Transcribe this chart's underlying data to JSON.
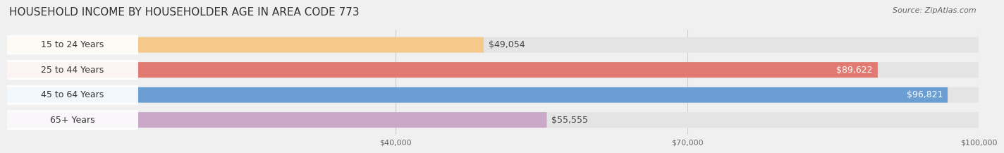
{
  "title": "HOUSEHOLD INCOME BY HOUSEHOLDER AGE IN AREA CODE 773",
  "source": "Source: ZipAtlas.com",
  "categories": [
    "15 to 24 Years",
    "25 to 44 Years",
    "45 to 64 Years",
    "65+ Years"
  ],
  "values": [
    49054,
    89622,
    96821,
    55555
  ],
  "bar_colors": [
    "#f5c98a",
    "#e07a72",
    "#6b9fd4",
    "#c9a8c8"
  ],
  "label_colors": [
    "#444444",
    "#ffffff",
    "#ffffff",
    "#444444"
  ],
  "xlim_min": 0,
  "xlim_max": 100000,
  "xticks": [
    40000,
    70000,
    100000
  ],
  "xtick_labels": [
    "$40,000",
    "$70,000",
    "$100,000"
  ],
  "bar_height": 0.62,
  "background_color": "#f0f0f0",
  "bar_bg_color": "#e4e4e4",
  "title_fontsize": 11,
  "source_fontsize": 8,
  "label_fontsize": 9,
  "tick_fontsize": 8,
  "value_threshold": 65000
}
